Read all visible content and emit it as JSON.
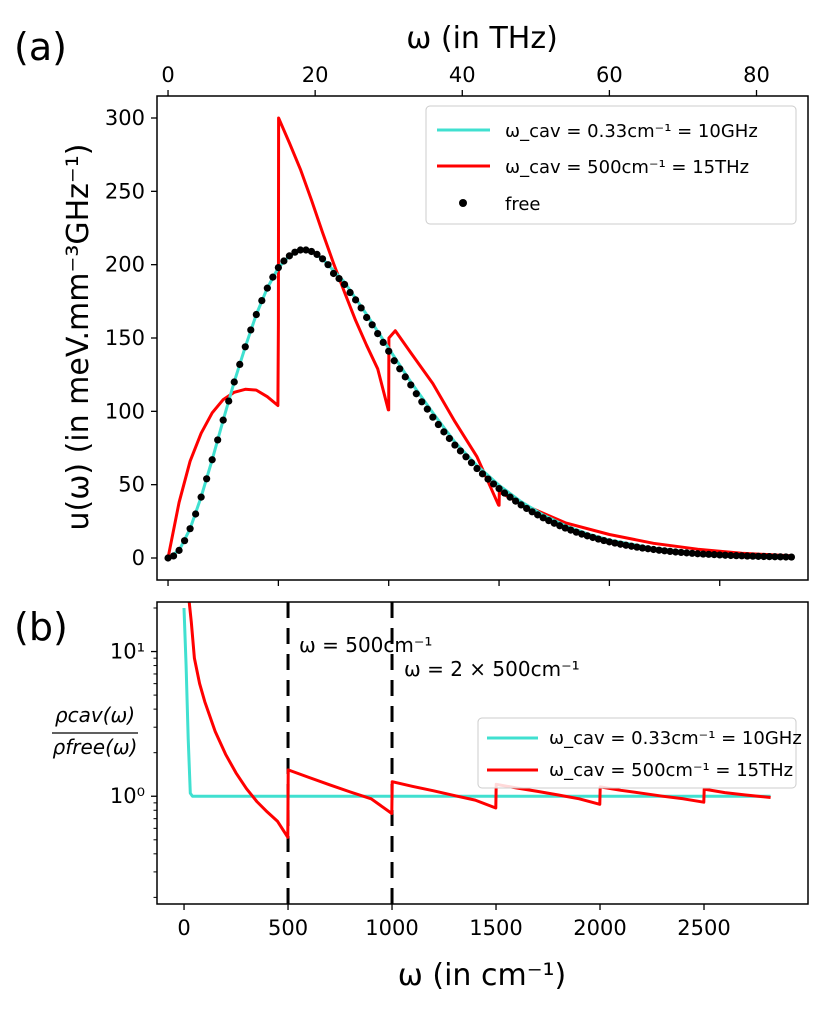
{
  "panels": {
    "a": {
      "label": "(a)",
      "top_axis": {
        "label": "ω (in THz)",
        "ticks": [
          "0",
          "20",
          "40",
          "60",
          "80"
        ]
      },
      "y_axis": {
        "label": "u(ω) (in meV.mm⁻³GHz⁻¹)",
        "ticks": [
          "0",
          "50",
          "100",
          "150",
          "200",
          "250",
          "300"
        ]
      },
      "legend": [
        {
          "label": "ω_cav = 0.33cm⁻¹ = 10GHz",
          "color": "#40e0d0",
          "style": "line"
        },
        {
          "label": "ω_cav = 500cm⁻¹ = 15THz",
          "color": "#ff0000",
          "style": "line"
        },
        {
          "label": "free",
          "color": "#000000",
          "style": "dots"
        }
      ]
    },
    "b": {
      "label": "(b)",
      "y_axis": {
        "label": "ρ_cav(ω)/ρ_free(ω)",
        "label_num": "ρcav(ω)",
        "label_den": "ρfree(ω)",
        "ticks": [
          "10¹",
          "10⁰"
        ]
      },
      "x_axis": {
        "label": "ω (in cm⁻¹)",
        "ticks": [
          "0",
          "500",
          "1000",
          "1500",
          "2000",
          "2500"
        ]
      },
      "annotations": [
        "ω = 500cm⁻¹",
        "ω = 2 × 500cm⁻¹"
      ],
      "legend": [
        {
          "label": "ω_cav = 0.33cm⁻¹ = 10GHz",
          "color": "#40e0d0",
          "style": "line"
        },
        {
          "label": "ω_cav = 500cm⁻¹ = 15THz",
          "color": "#ff0000",
          "style": "line"
        }
      ]
    }
  },
  "chart_data": [
    {
      "type": "line",
      "panel": "a",
      "title": "",
      "xlabel": "ω (in cm⁻¹)",
      "x2label": "ω (in THz)",
      "ylabel": "u(ω) (in meV.mm⁻³GHz⁻¹)",
      "xlim": [
        -50,
        2900
      ],
      "x2lim": [
        -1.5,
        87
      ],
      "ylim": [
        -15,
        315
      ],
      "x2ticks": [
        0,
        20,
        40,
        60,
        80
      ],
      "yticks": [
        0,
        50,
        100,
        150,
        200,
        250,
        300
      ],
      "series": [
        {
          "name": "ω_cav = 0.33cm⁻¹ = 10GHz",
          "color": "#40e0d0",
          "x": [
            0,
            50,
            100,
            150,
            200,
            250,
            300,
            350,
            400,
            450,
            500,
            550,
            600,
            650,
            700,
            800,
            900,
            1000,
            1100,
            1200,
            1300,
            1400,
            1500,
            1600,
            1700,
            1800,
            1900,
            2000,
            2200,
            2400,
            2600,
            2820
          ],
          "y": [
            0,
            5.2,
            20,
            41.5,
            67,
            94,
            120,
            144,
            166,
            184,
            198,
            206,
            210,
            209,
            204,
            188,
            166,
            143,
            120,
            99,
            79,
            63,
            49.6,
            38.4,
            29.3,
            22.1,
            16.5,
            12.2,
            6.6,
            3.5,
            1.8,
            0.9
          ]
        },
        {
          "name": "ω_cav = 500cm⁻¹ = 15THz",
          "color": "#ff0000",
          "x": [
            0,
            50,
            100,
            150,
            200,
            250,
            300,
            350,
            400,
            450,
            498,
            500,
            501,
            550,
            600,
            650,
            700,
            750,
            800,
            850,
            900,
            950,
            998,
            1000,
            1001,
            1030,
            1100,
            1200,
            1300,
            1400,
            1498,
            1500,
            1501,
            1600,
            1800,
            2000,
            2200,
            2400,
            2600,
            2820
          ],
          "y": [
            0,
            38,
            66,
            85,
            99,
            108,
            113,
            115,
            114.5,
            110,
            104,
            160,
            300,
            283,
            265,
            244,
            222,
            201,
            181,
            162,
            145,
            129,
            101,
            101,
            150,
            155,
            140,
            119,
            93,
            69,
            36,
            36,
            45,
            37,
            24,
            16,
            10,
            6,
            3.3,
            1.5
          ]
        },
        {
          "name": "free",
          "color": "#000000",
          "style": "dots",
          "x": [
            0,
            25,
            50,
            75,
            100,
            125,
            150,
            175,
            200,
            225,
            250,
            275,
            300,
            325,
            350,
            375,
            400,
            425,
            450,
            475,
            500,
            525,
            550,
            575,
            600,
            625,
            650,
            675,
            700,
            725,
            750,
            775,
            800,
            825,
            850,
            875,
            900,
            925,
            950,
            975,
            1000,
            1025,
            1050,
            1075,
            1100,
            1125,
            1150,
            1175,
            1200,
            1225,
            1250,
            1275,
            1300,
            1325,
            1350,
            1375,
            1400,
            1425,
            1450,
            1475,
            1500,
            1525,
            1550,
            1575,
            1600,
            1625,
            1650,
            1675,
            1700,
            1725,
            1750,
            1775,
            1800,
            1825,
            1850,
            1875,
            1900,
            1925,
            1950,
            1975,
            2000,
            2025,
            2050,
            2075,
            2100,
            2125,
            2150,
            2175,
            2200,
            2225,
            2250,
            2275,
            2300,
            2325,
            2350,
            2375,
            2400,
            2425,
            2450,
            2475,
            2500,
            2525,
            2550,
            2575,
            2600,
            2625,
            2650,
            2675,
            2700,
            2725,
            2750,
            2775,
            2800,
            2825
          ],
          "y": [
            0,
            1.4,
            5.2,
            11.8,
            20,
            30,
            41.5,
            54,
            67,
            80.5,
            94,
            107,
            120,
            132,
            144,
            155.5,
            166,
            175.5,
            184,
            191.5,
            198,
            202.5,
            206,
            208.5,
            210,
            210,
            209,
            207,
            204,
            200,
            194,
            190.5,
            186.5,
            181,
            176,
            170.5,
            164,
            159,
            153,
            147,
            141,
            134.5,
            129,
            123.5,
            118,
            112,
            106.5,
            101.5,
            96,
            91,
            86,
            81.5,
            77,
            73,
            69,
            65,
            61,
            57.4,
            53.8,
            50.5,
            47.3,
            44.3,
            41.5,
            38.8,
            36.2,
            33.8,
            31.5,
            29.4,
            27.4,
            25.5,
            23.7,
            22,
            20.4,
            19,
            17.6,
            16.3,
            15.1,
            14,
            12.9,
            11.9,
            11,
            10.2,
            9.4,
            8.7,
            8,
            7.4,
            6.8,
            6.3,
            5.8,
            5.3,
            4.9,
            4.5,
            4.1,
            3.8,
            3.5,
            3.2,
            2.9,
            2.7,
            2.5,
            2.3,
            2.1,
            1.9,
            1.7,
            1.6,
            1.5,
            1.35,
            1.22,
            1.12,
            1.02,
            0.93,
            0.85,
            0.77,
            0.7,
            0.64
          ]
        }
      ]
    },
    {
      "type": "line",
      "panel": "b",
      "title": "",
      "xlabel": "ω (in cm⁻¹)",
      "ylabel": "ρ_cav(ω)/ρ_free(ω)",
      "yscale": "log",
      "xlim": [
        -130,
        3000
      ],
      "ylim": [
        0.18,
        22
      ],
      "xticks": [
        0,
        500,
        1000,
        1500,
        2000,
        2500
      ],
      "yticks": [
        10,
        1
      ],
      "vlines": [
        500,
        1000
      ],
      "series": [
        {
          "name": "ω_cav = 0.33cm⁻¹ = 10GHz",
          "color": "#40e0d0",
          "x": [
            0,
            10,
            20,
            30,
            40,
            100,
            500,
            1000,
            2000,
            2820
          ],
          "y": [
            20,
            8,
            2.5,
            1.05,
            1.0,
            1.0,
            1.0,
            1.0,
            1.0,
            1.0
          ]
        },
        {
          "name": "ω_cav = 500cm⁻¹ = 15THz",
          "color": "#ff0000",
          "x": [
            25,
            35,
            50,
            75,
            100,
            150,
            200,
            250,
            300,
            350,
            400,
            450,
            499,
            501,
            600,
            700,
            800,
            900,
            999,
            1001,
            1100,
            1200,
            1300,
            1400,
            1499,
            1501,
            1600,
            1700,
            1800,
            1900,
            1999,
            2001,
            2100,
            2200,
            2300,
            2400,
            2499,
            2501,
            2600,
            2700,
            2820
          ],
          "y": [
            22,
            16,
            9.0,
            6.0,
            4.5,
            2.8,
            1.95,
            1.45,
            1.13,
            0.92,
            0.78,
            0.67,
            0.52,
            1.52,
            1.35,
            1.2,
            1.07,
            0.96,
            0.76,
            1.26,
            1.17,
            1.09,
            1.01,
            0.94,
            0.83,
            1.21,
            1.14,
            1.08,
            1.02,
            0.96,
            0.88,
            1.16,
            1.1,
            1.05,
            1.0,
            0.96,
            0.91,
            1.12,
            1.06,
            1.02,
            0.98
          ]
        }
      ]
    }
  ]
}
